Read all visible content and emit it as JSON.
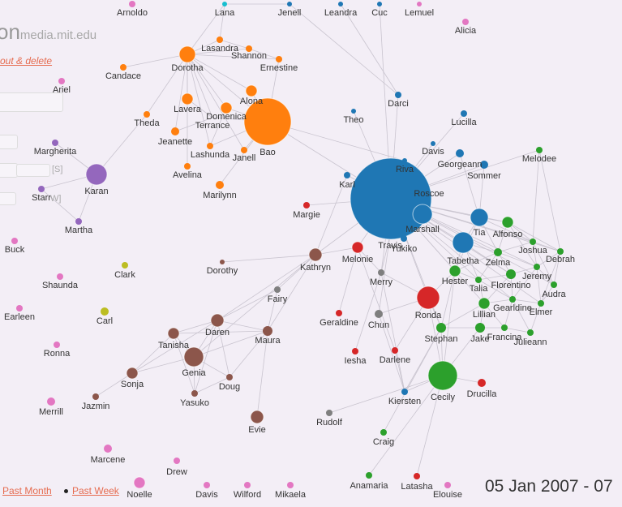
{
  "header": {
    "title_partial": "on",
    "site": "media.mit.edu",
    "logout_text": "out & delete",
    "ghost_S": "[S]",
    "ghost_W": "W]"
  },
  "footer": {
    "past_month": "Past Month",
    "past_week": "Past Week",
    "date_range": "05 Jan 2007 - 07"
  },
  "colors": {
    "orange": "#ff7f0e",
    "blue": "#1f77b4",
    "green": "#2ca02c",
    "red": "#d62728",
    "purple": "#9467bd",
    "brown": "#8c564b",
    "pink": "#e377c2",
    "gray": "#7f7f7f",
    "olive": "#bcbd22",
    "cyan": "#17becf",
    "edge": "#c9c4cf"
  },
  "nodes": [
    {
      "id": "Arnoldo",
      "g": "pink"
    },
    {
      "id": "Lana",
      "g": "cyan"
    },
    {
      "id": "Jenell",
      "g": "blue"
    },
    {
      "id": "Leandra",
      "g": "blue"
    },
    {
      "id": "Cuc",
      "g": "blue"
    },
    {
      "id": "Lemuel",
      "g": "pink"
    },
    {
      "id": "Alicia",
      "g": "pink"
    },
    {
      "id": "Lasandra",
      "g": "orange"
    },
    {
      "id": "Shannon",
      "g": "orange"
    },
    {
      "id": "Ernestine",
      "g": "orange"
    },
    {
      "id": "Dorotha",
      "g": "orange"
    },
    {
      "id": "Candace",
      "g": "orange"
    },
    {
      "id": "Ariel",
      "g": "pink"
    },
    {
      "id": "Alona",
      "g": "orange"
    },
    {
      "id": "Lavera",
      "g": "orange"
    },
    {
      "id": "Domenica",
      "g": "orange"
    },
    {
      "id": "Theda",
      "g": "orange"
    },
    {
      "id": "Terrance",
      "g": "orange"
    },
    {
      "id": "Bao",
      "g": "orange"
    },
    {
      "id": "Jeanette",
      "g": "orange"
    },
    {
      "id": "Lashunda",
      "g": "orange"
    },
    {
      "id": "Janell",
      "g": "orange"
    },
    {
      "id": "Avelina",
      "g": "orange"
    },
    {
      "id": "Marilynn",
      "g": "orange"
    },
    {
      "id": "Margherita",
      "g": "purple"
    },
    {
      "id": "Karan",
      "g": "purple"
    },
    {
      "id": "Starr",
      "g": "purple"
    },
    {
      "id": "Martha",
      "g": "purple"
    },
    {
      "id": "Darci",
      "g": "blue"
    },
    {
      "id": "Theo",
      "g": "blue"
    },
    {
      "id": "Lucilla",
      "g": "blue"
    },
    {
      "id": "Davis",
      "g": "blue"
    },
    {
      "id": "Georgeann",
      "g": "blue"
    },
    {
      "id": "Riva",
      "g": "blue"
    },
    {
      "id": "Melodee",
      "g": "green"
    },
    {
      "id": "Sommer",
      "g": "blue"
    },
    {
      "id": "Karl",
      "g": "blue"
    },
    {
      "id": "Roscoe",
      "g": "blue"
    },
    {
      "id": "Margie",
      "g": "red"
    },
    {
      "id": "Marshall",
      "g": "blue"
    },
    {
      "id": "Tia",
      "g": "blue"
    },
    {
      "id": "Alfonso",
      "g": "green"
    },
    {
      "id": "Buck",
      "g": "pink"
    },
    {
      "id": "Travis",
      "g": "blue"
    },
    {
      "id": "Yukiko",
      "g": "blue"
    },
    {
      "id": "Melonie",
      "g": "red"
    },
    {
      "id": "Tabetha",
      "g": "blue"
    },
    {
      "id": "Joshua",
      "g": "green"
    },
    {
      "id": "Debrah",
      "g": "green"
    },
    {
      "id": "Zelma",
      "g": "green"
    },
    {
      "id": "Dorothy",
      "g": "brown"
    },
    {
      "id": "Kathryn",
      "g": "brown"
    },
    {
      "id": "Clark",
      "g": "olive"
    },
    {
      "id": "Shaunda",
      "g": "pink"
    },
    {
      "id": "Merry",
      "g": "gray"
    },
    {
      "id": "Hester",
      "g": "green"
    },
    {
      "id": "Jeremy",
      "g": "green"
    },
    {
      "id": "Florentino",
      "g": "green"
    },
    {
      "id": "Talia",
      "g": "green"
    },
    {
      "id": "Audra",
      "g": "green"
    },
    {
      "id": "Fairy",
      "g": "gray"
    },
    {
      "id": "Earleen",
      "g": "pink"
    },
    {
      "id": "Carl",
      "g": "olive"
    },
    {
      "id": "Ronda",
      "g": "red"
    },
    {
      "id": "Gearldine",
      "g": "green"
    },
    {
      "id": "Elmer",
      "g": "green"
    },
    {
      "id": "Lillian",
      "g": "green"
    },
    {
      "id": "Geraldine",
      "g": "red"
    },
    {
      "id": "Chun",
      "g": "gray"
    },
    {
      "id": "Daren",
      "g": "brown"
    },
    {
      "id": "Maura",
      "g": "brown"
    },
    {
      "id": "Tanisha",
      "g": "brown"
    },
    {
      "id": "Stephan",
      "g": "green"
    },
    {
      "id": "Jake",
      "g": "green"
    },
    {
      "id": "Francina",
      "g": "green"
    },
    {
      "id": "Julieann",
      "g": "green"
    },
    {
      "id": "Ronna",
      "g": "pink"
    },
    {
      "id": "Genia",
      "g": "brown"
    },
    {
      "id": "Iesha",
      "g": "red"
    },
    {
      "id": "Darlene",
      "g": "red"
    },
    {
      "id": "Sonja",
      "g": "brown"
    },
    {
      "id": "Doug",
      "g": "brown"
    },
    {
      "id": "Jazmin",
      "g": "brown"
    },
    {
      "id": "Yasuko",
      "g": "brown"
    },
    {
      "id": "Cecily",
      "g": "green"
    },
    {
      "id": "Drucilla",
      "g": "red"
    },
    {
      "id": "Merrill",
      "g": "pink"
    },
    {
      "id": "Kiersten",
      "g": "blue"
    },
    {
      "id": "Evie",
      "g": "brown"
    },
    {
      "id": "Rudolf",
      "g": "gray"
    },
    {
      "id": "Craig",
      "g": "green"
    },
    {
      "id": "Marcene",
      "g": "pink"
    },
    {
      "id": "Drew",
      "g": "pink"
    },
    {
      "id": "Anamaria",
      "g": "green"
    },
    {
      "id": "Latasha",
      "g": "red"
    },
    {
      "id": "Noelle",
      "g": "pink"
    },
    {
      "id": "Davis2",
      "label": "Davis",
      "g": "pink"
    },
    {
      "id": "Wilford",
      "g": "pink"
    },
    {
      "id": "Mikaela",
      "g": "pink"
    },
    {
      "id": "Elouise",
      "g": "pink"
    }
  ],
  "edges": [
    [
      "Lana",
      "Dorotha"
    ],
    [
      "Lana",
      "Lasandra"
    ],
    [
      "Lana",
      "Jenell"
    ],
    [
      "Lasandra",
      "Shannon"
    ],
    [
      "Lasandra",
      "Dorotha"
    ],
    [
      "Shannon",
      "Ernestine"
    ],
    [
      "Shannon",
      "Dorotha"
    ],
    [
      "Ernestine",
      "Dorotha"
    ],
    [
      "Ernestine",
      "Bao"
    ],
    [
      "Candace",
      "Dorotha"
    ],
    [
      "Theda",
      "Dorotha"
    ],
    [
      "Theda",
      "Karan"
    ],
    [
      "Dorotha",
      "Alona"
    ],
    [
      "Dorotha",
      "Lavera"
    ],
    [
      "Dorotha",
      "Domenica"
    ],
    [
      "Dorotha",
      "Terrance"
    ],
    [
      "Dorotha",
      "Bao"
    ],
    [
      "Dorotha",
      "Jeanette"
    ],
    [
      "Dorotha",
      "Lashunda"
    ],
    [
      "Dorotha",
      "Janell"
    ],
    [
      "Dorotha",
      "Avelina"
    ],
    [
      "Bao",
      "Alona"
    ],
    [
      "Bao",
      "Janell"
    ],
    [
      "Bao",
      "Lashunda"
    ],
    [
      "Bao",
      "Marilynn"
    ],
    [
      "Bao",
      "Domenica"
    ],
    [
      "Bao",
      "Terrance"
    ],
    [
      "Bao",
      "Roscoe"
    ],
    [
      "Bao",
      "Riva"
    ],
    [
      "Jeanette",
      "Terrance"
    ],
    [
      "Lavera",
      "Terrance"
    ],
    [
      "Domenica",
      "Lashunda"
    ],
    [
      "Margherita",
      "Karan"
    ],
    [
      "Karan",
      "Starr"
    ],
    [
      "Karan",
      "Martha"
    ],
    [
      "Starr",
      "Martha"
    ],
    [
      "Darci",
      "Roscoe"
    ],
    [
      "Theo",
      "Roscoe"
    ],
    [
      "Lucilla",
      "Roscoe"
    ],
    [
      "Davis",
      "Roscoe"
    ],
    [
      "Georgeann",
      "Roscoe"
    ],
    [
      "Sommer",
      "Roscoe"
    ],
    [
      "Karl",
      "Roscoe"
    ],
    [
      "Riva",
      "Roscoe"
    ],
    [
      "Marshall",
      "Roscoe"
    ],
    [
      "Tia",
      "Roscoe"
    ],
    [
      "Tabetha",
      "Roscoe"
    ],
    [
      "Travis",
      "Roscoe"
    ],
    [
      "Yukiko",
      "Roscoe"
    ],
    [
      "Melonie",
      "Roscoe"
    ],
    [
      "Margie",
      "Roscoe"
    ],
    [
      "Merry",
      "Roscoe"
    ],
    [
      "Melodee",
      "Roscoe"
    ],
    [
      "Alfonso",
      "Roscoe"
    ],
    [
      "Joshua",
      "Roscoe"
    ],
    [
      "Debrah",
      "Roscoe"
    ],
    [
      "Zelma",
      "Roscoe"
    ],
    [
      "Hester",
      "Roscoe"
    ],
    [
      "Jeremy",
      "Roscoe"
    ],
    [
      "Florentino",
      "Roscoe"
    ],
    [
      "Talia",
      "Roscoe"
    ],
    [
      "Audra",
      "Roscoe"
    ],
    [
      "Ronda",
      "Roscoe"
    ],
    [
      "Gearldine",
      "Roscoe"
    ],
    [
      "Elmer",
      "Roscoe"
    ],
    [
      "Lillian",
      "Roscoe"
    ],
    [
      "Stephan",
      "Roscoe"
    ],
    [
      "Kathryn",
      "Roscoe"
    ],
    [
      "Jenell",
      "Darci"
    ],
    [
      "Leandra",
      "Darci"
    ],
    [
      "Cuc",
      "Roscoe"
    ],
    [
      "Tia",
      "Alfonso"
    ],
    [
      "Tia",
      "Zelma"
    ],
    [
      "Tia",
      "Joshua"
    ],
    [
      "Tia",
      "Tabetha"
    ],
    [
      "Tia",
      "Hester"
    ],
    [
      "Tabetha",
      "Zelma"
    ],
    [
      "Tabetha",
      "Hester"
    ],
    [
      "Tabetha",
      "Talia"
    ],
    [
      "Tabetha",
      "Florentino"
    ],
    [
      "Alfonso",
      "Joshua"
    ],
    [
      "Alfonso",
      "Debrah"
    ],
    [
      "Alfonso",
      "Zelma"
    ],
    [
      "Alfonso",
      "Jeremy"
    ],
    [
      "Joshua",
      "Debrah"
    ],
    [
      "Joshua",
      "Zelma"
    ],
    [
      "Joshua",
      "Jeremy"
    ],
    [
      "Joshua",
      "Audra"
    ],
    [
      "Debrah",
      "Jeremy"
    ],
    [
      "Debrah",
      "Audra"
    ],
    [
      "Debrah",
      "Elmer"
    ],
    [
      "Zelma",
      "Florentino"
    ],
    [
      "Zelma",
      "Talia"
    ],
    [
      "Zelma",
      "Jeremy"
    ],
    [
      "Zelma",
      "Hester"
    ],
    [
      "Florentino",
      "Talia"
    ],
    [
      "Florentino",
      "Gearldine"
    ],
    [
      "Florentino",
      "Jeremy"
    ],
    [
      "Florentino",
      "Lillian"
    ],
    [
      "Jeremy",
      "Audra"
    ],
    [
      "Jeremy",
      "Elmer"
    ],
    [
      "Jeremy",
      "Gearldine"
    ],
    [
      "Audra",
      "Elmer"
    ],
    [
      "Talia",
      "Lillian"
    ],
    [
      "Talia",
      "Hester"
    ],
    [
      "Talia",
      "Gearldine"
    ],
    [
      "Lillian",
      "Gearldine"
    ],
    [
      "Lillian",
      "Jake"
    ],
    [
      "Lillian",
      "Stephan"
    ],
    [
      "Lillian",
      "Francina"
    ],
    [
      "Gearldine",
      "Elmer"
    ],
    [
      "Gearldine",
      "Francina"
    ],
    [
      "Gearldine",
      "Julieann"
    ],
    [
      "Jake",
      "Francina"
    ],
    [
      "Francina",
      "Julieann"
    ],
    [
      "Elmer",
      "Julieann"
    ],
    [
      "Stephan",
      "Jake"
    ],
    [
      "Stephan",
      "Cecily"
    ],
    [
      "Hester",
      "Stephan"
    ],
    [
      "Melodee",
      "Joshua"
    ],
    [
      "Melodee",
      "Debrah"
    ],
    [
      "Sommer",
      "Tia"
    ],
    [
      "Georgeann",
      "Tia"
    ],
    [
      "Cecily",
      "Rudolf"
    ],
    [
      "Cecily",
      "Kiersten"
    ],
    [
      "Cecily",
      "Jake"
    ],
    [
      "Cecily",
      "Ronda"
    ],
    [
      "Cecily",
      "Hester"
    ],
    [
      "Ronda",
      "Chun"
    ],
    [
      "Ronda",
      "Darlene"
    ],
    [
      "Ronda",
      "Stephan"
    ],
    [
      "Ronda",
      "Merry"
    ],
    [
      "Ronda",
      "Hester"
    ],
    [
      "Kiersten",
      "Chun"
    ],
    [
      "Kiersten",
      "Merry"
    ],
    [
      "Kiersten",
      "Darlene"
    ],
    [
      "Kiersten",
      "Stephan"
    ],
    [
      "Craig",
      "Stephan"
    ],
    [
      "Anamaria",
      "Cecily"
    ],
    [
      "Latasha",
      "Cecily"
    ],
    [
      "Drucilla",
      "Cecily"
    ],
    [
      "Iesha",
      "Merry"
    ],
    [
      "Geraldine",
      "Melonie"
    ],
    [
      "Melonie",
      "Kathryn"
    ],
    [
      "Melonie",
      "Merry"
    ],
    [
      "Melonie",
      "Darlene"
    ],
    [
      "Travis",
      "Merry"
    ],
    [
      "Travis",
      "Chun"
    ],
    [
      "Kathryn",
      "Fairy"
    ],
    [
      "Kathryn",
      "Dorothy"
    ],
    [
      "Kathryn",
      "Daren"
    ],
    [
      "Kathryn",
      "Maura"
    ],
    [
      "Kathryn",
      "Genia"
    ],
    [
      "Kathryn",
      "Karl"
    ],
    [
      "Daren",
      "Maura"
    ],
    [
      "Daren",
      "Tanisha"
    ],
    [
      "Daren",
      "Genia"
    ],
    [
      "Daren",
      "Doug"
    ],
    [
      "Daren",
      "Yasuko"
    ],
    [
      "Daren",
      "Sonja"
    ],
    [
      "Maura",
      "Genia"
    ],
    [
      "Maura",
      "Doug"
    ],
    [
      "Maura",
      "Evie"
    ],
    [
      "Maura",
      "Tanisha"
    ],
    [
      "Tanisha",
      "Genia"
    ],
    [
      "Tanisha",
      "Sonja"
    ],
    [
      "Tanisha",
      "Yasuko"
    ],
    [
      "Genia",
      "Doug"
    ],
    [
      "Genia",
      "Sonja"
    ],
    [
      "Genia",
      "Yasuko"
    ],
    [
      "Sonja",
      "Jazmin"
    ],
    [
      "Doug",
      "Yasuko"
    ],
    [
      "Fairy",
      "Maura"
    ],
    [
      "Fairy",
      "Daren"
    ]
  ]
}
